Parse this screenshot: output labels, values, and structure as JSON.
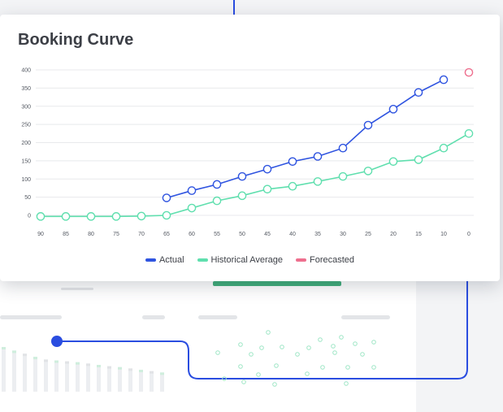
{
  "chart_data": {
    "type": "line",
    "title": "Booking Curve",
    "x": [
      90,
      85,
      80,
      75,
      70,
      65,
      60,
      55,
      50,
      45,
      40,
      35,
      30,
      25,
      20,
      15,
      10,
      0
    ],
    "x_ticks": [
      "90",
      "85",
      "80",
      "75",
      "70",
      "65",
      "60",
      "55",
      "50",
      "45",
      "40",
      "35",
      "30",
      "25",
      "20",
      "15",
      "10",
      "0"
    ],
    "y_ticks": [
      0,
      50,
      100,
      150,
      200,
      250,
      300,
      350,
      400
    ],
    "ylim": [
      0,
      400
    ],
    "grid": true,
    "legend_position": "bottom",
    "series": [
      {
        "name": "Actual",
        "color": "#2f54e0",
        "values": [
          null,
          null,
          null,
          null,
          null,
          48,
          68,
          85,
          107,
          127,
          148,
          162,
          185,
          248,
          292,
          338,
          373,
          null
        ]
      },
      {
        "name": "Historical Average",
        "color": "#5fdfae",
        "values": [
          -3,
          -3,
          -3,
          -3,
          -2,
          0,
          20,
          40,
          54,
          72,
          80,
          93,
          107,
          122,
          148,
          153,
          185,
          225
        ]
      },
      {
        "name": "Forecasted",
        "color": "#ee6f8e",
        "values": [
          null,
          null,
          null,
          null,
          null,
          null,
          null,
          null,
          null,
          null,
          null,
          null,
          null,
          null,
          null,
          null,
          null,
          393
        ]
      }
    ]
  },
  "background": {
    "bars": [
      {
        "v": 1.0,
        "c": "#cfeedd"
      },
      {
        "v": 0.92,
        "c": "#cfeedd"
      },
      {
        "v": 0.85,
        "c": "#e1e3e6"
      },
      {
        "v": 0.78,
        "c": "#cfeedd"
      },
      {
        "v": 0.72,
        "c": "#e1e3e6"
      },
      {
        "v": 0.7,
        "c": "#cfeedd"
      },
      {
        "v": 0.68,
        "c": "#e1e3e6"
      },
      {
        "v": 0.66,
        "c": "#cfeedd"
      },
      {
        "v": 0.63,
        "c": "#e1e3e6"
      },
      {
        "v": 0.6,
        "c": "#cfeedd"
      },
      {
        "v": 0.57,
        "c": "#e1e3e6"
      },
      {
        "v": 0.55,
        "c": "#cfeedd"
      },
      {
        "v": 0.52,
        "c": "#e1e3e6"
      },
      {
        "v": 0.49,
        "c": "#cfeedd"
      },
      {
        "v": 0.46,
        "c": "#e1e3e6"
      },
      {
        "v": 0.43,
        "c": "#cfeedd"
      }
    ],
    "accent": "#2a4de0"
  }
}
